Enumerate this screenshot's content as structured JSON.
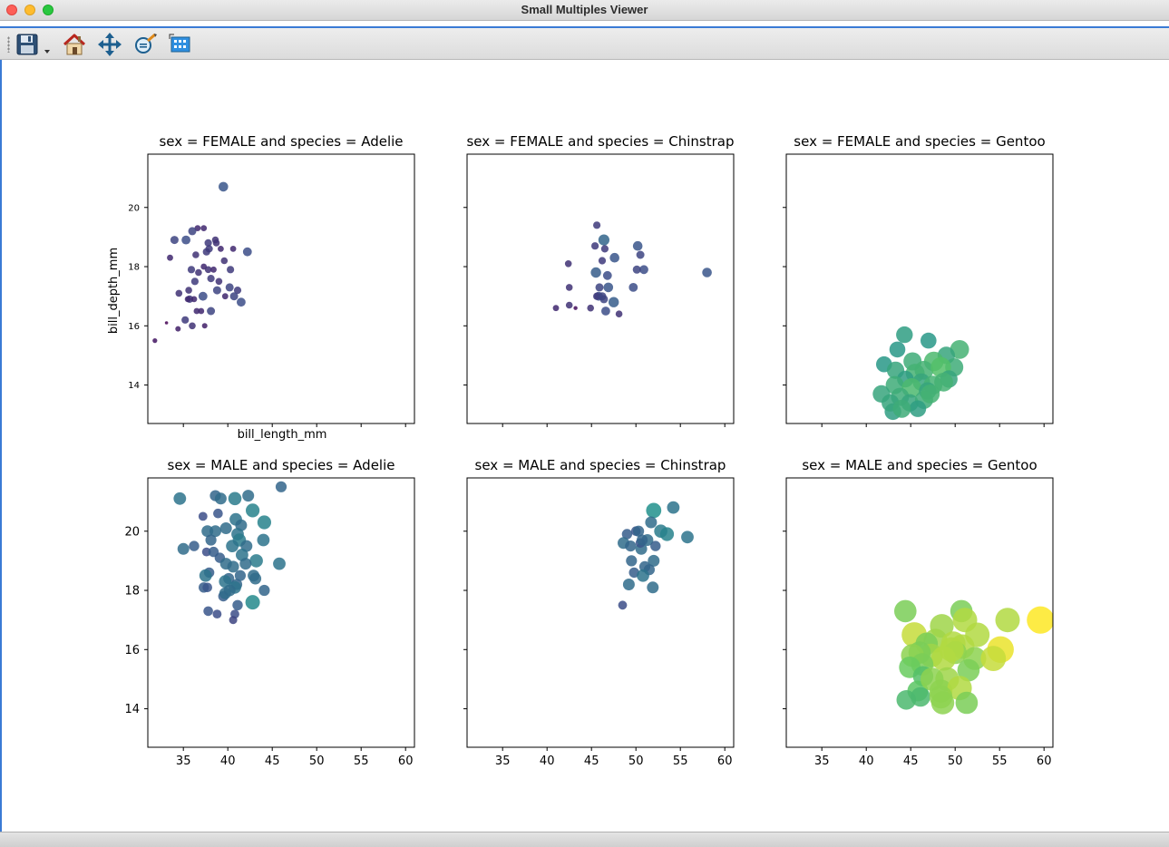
{
  "window": {
    "title": "Small Multiples Viewer",
    "controls": [
      "close",
      "minimize",
      "zoom"
    ]
  },
  "toolbar": {
    "tools": [
      {
        "icon": "save-icon",
        "label": "Save"
      },
      {
        "icon": "home-icon",
        "label": "Home"
      },
      {
        "icon": "pan-icon",
        "label": "Pan"
      },
      {
        "icon": "zoom-icon",
        "label": "Zoom"
      },
      {
        "icon": "subplots-icon",
        "label": "Configure subplots"
      }
    ]
  },
  "colors": {
    "accent": "#3a7bd5",
    "colormap": "viridis"
  },
  "chart_data": [
    {
      "type": "scatter",
      "title": "sex = FEMALE and species = Adelie",
      "xlabel": "bill_length_mm",
      "ylabel": "bill_depth_mm",
      "xlim": [
        31,
        61
      ],
      "ylim": [
        12.7,
        21.8
      ],
      "xticks": [
        35,
        40,
        45,
        50,
        55,
        60
      ],
      "yticks": [
        14,
        16,
        18,
        20
      ],
      "show_x_ticklabels": false,
      "show_y_ticklabels": true,
      "small_yticks": true,
      "grid": false,
      "points": [
        [
          39.5,
          20.7,
          3.5
        ],
        [
          36.6,
          19.3,
          3.0
        ],
        [
          36.0,
          19.2,
          3.3
        ],
        [
          37.3,
          19.3,
          3.0
        ],
        [
          34.0,
          18.9,
          3.3
        ],
        [
          37.8,
          18.8,
          3.2
        ],
        [
          35.3,
          18.9,
          3.4
        ],
        [
          38.6,
          18.9,
          3.1
        ],
        [
          40.6,
          18.6,
          3.0
        ],
        [
          38.7,
          18.8,
          3.1
        ],
        [
          36.4,
          18.4,
          3.1
        ],
        [
          37.6,
          18.5,
          3.2
        ],
        [
          42.2,
          18.5,
          3.4
        ],
        [
          33.5,
          18.3,
          3.0
        ],
        [
          35.9,
          17.9,
          3.2
        ],
        [
          37.3,
          18.0,
          3.0
        ],
        [
          37.8,
          17.9,
          3.1
        ],
        [
          38.1,
          17.6,
          3.2
        ],
        [
          39.0,
          17.5,
          3.1
        ],
        [
          40.2,
          17.3,
          3.3
        ],
        [
          41.1,
          17.2,
          3.2
        ],
        [
          36.3,
          17.5,
          3.2
        ],
        [
          35.6,
          17.2,
          3.1
        ],
        [
          37.2,
          17.0,
          3.4
        ],
        [
          39.7,
          17.0,
          3.0
        ],
        [
          40.7,
          17.0,
          3.3
        ],
        [
          35.7,
          16.9,
          3.2
        ],
        [
          34.5,
          17.1,
          3.1
        ],
        [
          36.2,
          16.9,
          3.0
        ],
        [
          38.8,
          17.2,
          3.3
        ],
        [
          41.5,
          16.8,
          3.4
        ],
        [
          38.1,
          16.5,
          3.3
        ],
        [
          36.5,
          16.5,
          3.0
        ],
        [
          35.2,
          16.2,
          3.2
        ],
        [
          34.4,
          15.9,
          2.9
        ],
        [
          36.0,
          16.0,
          3.1
        ],
        [
          37.0,
          16.5,
          3.0
        ],
        [
          31.8,
          15.5,
          2.8
        ],
        [
          33.1,
          16.1,
          2.6
        ],
        [
          37.4,
          16.0,
          2.9
        ],
        [
          37.9,
          18.6,
          3.2
        ],
        [
          39.2,
          18.6,
          3.0
        ],
        [
          40.3,
          17.9,
          3.2
        ],
        [
          39.6,
          18.2,
          3.1
        ],
        [
          38.4,
          17.9,
          3.0
        ],
        [
          36.7,
          17.8,
          3.1
        ],
        [
          35.5,
          16.9,
          3.0
        ]
      ]
    },
    {
      "type": "scatter",
      "title": "sex = FEMALE and species = Chinstrap",
      "xlabel": "",
      "ylabel": "",
      "xlim": [
        31,
        61
      ],
      "ylim": [
        12.7,
        21.8
      ],
      "xticks": [
        35,
        40,
        45,
        50,
        55,
        60
      ],
      "yticks": [
        14,
        16,
        18,
        20
      ],
      "show_x_ticklabels": false,
      "show_y_ticklabels": false,
      "small_yticks": true,
      "grid": false,
      "points": [
        [
          45.6,
          19.4,
          3.2
        ],
        [
          46.4,
          18.9,
          3.7
        ],
        [
          45.4,
          18.7,
          3.2
        ],
        [
          50.2,
          18.7,
          3.5
        ],
        [
          46.5,
          18.6,
          3.2
        ],
        [
          50.5,
          18.4,
          3.3
        ],
        [
          47.6,
          18.3,
          3.5
        ],
        [
          46.2,
          18.2,
          3.2
        ],
        [
          42.4,
          18.1,
          3.1
        ],
        [
          58.0,
          17.8,
          3.5
        ],
        [
          50.9,
          17.9,
          3.4
        ],
        [
          45.5,
          17.8,
          3.6
        ],
        [
          46.8,
          17.7,
          3.4
        ],
        [
          50.1,
          17.9,
          3.3
        ],
        [
          45.9,
          17.3,
          3.3
        ],
        [
          49.7,
          17.3,
          3.4
        ],
        [
          46.9,
          17.3,
          3.5
        ],
        [
          42.5,
          17.3,
          3.1
        ],
        [
          45.8,
          17.0,
          3.4
        ],
        [
          45.6,
          17.0,
          3.2
        ],
        [
          46.4,
          16.9,
          3.3
        ],
        [
          47.5,
          16.8,
          3.6
        ],
        [
          46.6,
          16.5,
          3.4
        ],
        [
          44.9,
          16.6,
          3.1
        ],
        [
          42.5,
          16.7,
          3.1
        ],
        [
          43.2,
          16.6,
          2.7
        ],
        [
          41.0,
          16.6,
          3.0
        ],
        [
          48.1,
          16.4,
          3.1
        ],
        [
          46.2,
          17.0,
          3.3
        ]
      ]
    },
    {
      "type": "scatter",
      "title": "sex = FEMALE and species = Gentoo",
      "xlabel": "",
      "ylabel": "",
      "xlim": [
        31,
        61
      ],
      "ylim": [
        12.7,
        21.8
      ],
      "xticks": [
        35,
        40,
        45,
        50,
        55,
        60
      ],
      "yticks": [
        14,
        16,
        18,
        20
      ],
      "show_x_ticklabels": false,
      "show_y_ticklabels": false,
      "small_yticks": true,
      "grid": false,
      "points": [
        [
          44.3,
          15.7,
          4.5
        ],
        [
          47.0,
          15.5,
          4.4
        ],
        [
          50.5,
          15.2,
          4.8
        ],
        [
          43.5,
          15.2,
          4.4
        ],
        [
          49.0,
          15.0,
          4.6
        ],
        [
          45.2,
          14.8,
          4.7
        ],
        [
          47.6,
          14.8,
          4.9
        ],
        [
          49.9,
          14.6,
          4.7
        ],
        [
          42.0,
          14.7,
          4.4
        ],
        [
          43.3,
          14.5,
          4.6
        ],
        [
          46.5,
          14.5,
          4.8
        ],
        [
          48.4,
          14.6,
          5.0
        ],
        [
          45.5,
          14.4,
          4.8
        ],
        [
          44.4,
          14.2,
          4.5
        ],
        [
          46.2,
          14.1,
          4.6
        ],
        [
          49.3,
          14.2,
          4.6
        ],
        [
          43.2,
          14.0,
          4.7
        ],
        [
          47.5,
          14.0,
          4.8
        ],
        [
          45.1,
          13.9,
          4.9
        ],
        [
          46.9,
          13.8,
          4.6
        ],
        [
          41.7,
          13.7,
          4.6
        ],
        [
          43.8,
          13.6,
          4.7
        ],
        [
          44.9,
          13.4,
          4.6
        ],
        [
          46.5,
          13.5,
          4.7
        ],
        [
          48.7,
          14.1,
          4.8
        ],
        [
          43.0,
          13.1,
          4.5
        ],
        [
          45.8,
          13.2,
          4.5
        ],
        [
          42.7,
          13.4,
          4.6
        ],
        [
          44.0,
          13.2,
          4.7
        ],
        [
          47.2,
          13.7,
          4.8
        ]
      ]
    },
    {
      "type": "scatter",
      "title": "sex = MALE and species = Adelie",
      "xlabel": "",
      "ylabel": "",
      "xlim": [
        31,
        61
      ],
      "ylim": [
        12.7,
        21.8
      ],
      "xticks": [
        35,
        40,
        45,
        50,
        55,
        60
      ],
      "yticks": [
        14,
        16,
        18,
        20
      ],
      "show_x_ticklabels": true,
      "show_y_ticklabels": true,
      "small_yticks": false,
      "grid": false,
      "points": [
        [
          34.6,
          21.1,
          3.9
        ],
        [
          38.6,
          21.2,
          3.7
        ],
        [
          39.2,
          21.1,
          3.8
        ],
        [
          40.8,
          21.1,
          4.0
        ],
        [
          42.3,
          21.2,
          3.8
        ],
        [
          46.0,
          21.5,
          3.7
        ],
        [
          42.8,
          20.7,
          4.1
        ],
        [
          38.9,
          20.6,
          3.5
        ],
        [
          37.2,
          20.5,
          3.4
        ],
        [
          40.9,
          20.4,
          3.9
        ],
        [
          41.5,
          20.2,
          3.8
        ],
        [
          44.1,
          20.3,
          4.1
        ],
        [
          39.8,
          20.1,
          3.8
        ],
        [
          37.7,
          20.0,
          3.8
        ],
        [
          38.6,
          20.0,
          3.8
        ],
        [
          41.1,
          19.9,
          3.9
        ],
        [
          41.3,
          19.7,
          4.0
        ],
        [
          40.5,
          19.5,
          3.9
        ],
        [
          44.0,
          19.7,
          3.9
        ],
        [
          38.1,
          19.7,
          3.7
        ],
        [
          35.0,
          19.4,
          3.8
        ],
        [
          36.2,
          19.5,
          3.6
        ],
        [
          37.6,
          19.3,
          3.4
        ],
        [
          42.1,
          19.5,
          3.8
        ],
        [
          41.6,
          19.2,
          3.9
        ],
        [
          38.4,
          19.3,
          3.6
        ],
        [
          43.2,
          19.0,
          4.0
        ],
        [
          42.0,
          18.9,
          3.8
        ],
        [
          39.1,
          19.1,
          3.6
        ],
        [
          39.8,
          18.9,
          3.8
        ],
        [
          45.8,
          18.9,
          3.9
        ],
        [
          40.6,
          18.8,
          3.8
        ],
        [
          37.9,
          18.6,
          3.6
        ],
        [
          41.4,
          18.5,
          3.7
        ],
        [
          42.9,
          18.5,
          3.8
        ],
        [
          37.5,
          18.5,
          3.9
        ],
        [
          40.1,
          18.4,
          3.7
        ],
        [
          39.7,
          18.3,
          3.9
        ],
        [
          43.1,
          18.4,
          3.8
        ],
        [
          41.0,
          18.2,
          3.7
        ],
        [
          37.3,
          18.1,
          3.6
        ],
        [
          37.7,
          18.1,
          3.5
        ],
        [
          40.8,
          18.1,
          3.9
        ],
        [
          40.2,
          18.0,
          3.8
        ],
        [
          44.1,
          18.0,
          3.7
        ],
        [
          39.5,
          17.8,
          3.6
        ],
        [
          39.7,
          17.9,
          3.8
        ],
        [
          41.1,
          17.5,
          3.6
        ],
        [
          42.8,
          17.6,
          4.2
        ],
        [
          37.8,
          17.3,
          3.5
        ],
        [
          38.8,
          17.2,
          3.4
        ],
        [
          40.8,
          17.2,
          3.4
        ],
        [
          40.6,
          17.0,
          3.3
        ]
      ]
    },
    {
      "type": "scatter",
      "title": "sex = MALE and species = Chinstrap",
      "xlabel": "",
      "ylabel": "",
      "xlim": [
        31,
        61
      ],
      "ylim": [
        12.7,
        21.8
      ],
      "xticks": [
        35,
        40,
        45,
        50,
        55,
        60
      ],
      "yticks": [
        14,
        16,
        18,
        20
      ],
      "show_x_ticklabels": true,
      "show_y_ticklabels": false,
      "small_yticks": false,
      "grid": false,
      "points": [
        [
          54.2,
          20.8,
          3.9
        ],
        [
          52.0,
          20.7,
          4.3
        ],
        [
          51.7,
          20.3,
          3.8
        ],
        [
          52.8,
          20.0,
          4.0
        ],
        [
          50.0,
          20.0,
          3.5
        ],
        [
          49.0,
          19.9,
          3.6
        ],
        [
          53.5,
          19.9,
          4.1
        ],
        [
          50.3,
          20.0,
          3.7
        ],
        [
          55.8,
          19.8,
          3.9
        ],
        [
          51.3,
          19.7,
          3.8
        ],
        [
          48.6,
          19.6,
          3.8
        ],
        [
          49.4,
          19.5,
          3.7
        ],
        [
          50.6,
          19.4,
          3.8
        ],
        [
          52.0,
          19.0,
          3.8
        ],
        [
          49.5,
          19.0,
          3.7
        ],
        [
          51.5,
          18.7,
          3.7
        ],
        [
          50.5,
          19.6,
          3.5
        ],
        [
          52.2,
          19.5,
          3.6
        ],
        [
          49.8,
          18.6,
          3.6
        ],
        [
          51.0,
          18.8,
          3.7
        ],
        [
          49.2,
          18.2,
          3.8
        ],
        [
          51.9,
          18.1,
          3.8
        ],
        [
          50.8,
          18.5,
          3.9
        ],
        [
          50.7,
          19.7,
          3.7
        ],
        [
          48.5,
          17.5,
          3.4
        ]
      ]
    },
    {
      "type": "scatter",
      "title": "sex = MALE and species = Gentoo",
      "xlabel": "",
      "ylabel": "",
      "xlim": [
        31,
        61
      ],
      "ylim": [
        12.7,
        21.8
      ],
      "xticks": [
        35,
        40,
        45,
        50,
        55,
        60
      ],
      "yticks": [
        14,
        16,
        18,
        20
      ],
      "show_x_ticklabels": true,
      "show_y_ticklabels": false,
      "small_yticks": false,
      "grid": false,
      "points": [
        [
          44.4,
          17.3,
          5.3
        ],
        [
          50.7,
          17.3,
          5.3
        ],
        [
          51.1,
          17.0,
          5.6
        ],
        [
          59.6,
          17.0,
          6.0
        ],
        [
          55.9,
          17.0,
          5.6
        ],
        [
          48.5,
          16.8,
          5.5
        ],
        [
          45.4,
          16.5,
          5.7
        ],
        [
          52.5,
          16.5,
          5.6
        ],
        [
          47.8,
          16.3,
          5.5
        ],
        [
          49.8,
          16.2,
          5.6
        ],
        [
          46.8,
          16.2,
          5.3
        ],
        [
          50.8,
          16.1,
          5.6
        ],
        [
          55.1,
          16.0,
          5.9
        ],
        [
          47.3,
          15.8,
          5.5
        ],
        [
          46.0,
          15.9,
          5.3
        ],
        [
          50.0,
          15.9,
          5.4
        ],
        [
          52.2,
          15.7,
          5.4
        ],
        [
          48.7,
          15.7,
          5.6
        ],
        [
          54.3,
          15.7,
          5.7
        ],
        [
          45.2,
          15.8,
          5.4
        ],
        [
          49.6,
          16.0,
          5.6
        ],
        [
          51.5,
          15.3,
          5.3
        ],
        [
          46.3,
          15.5,
          5.3
        ],
        [
          49.1,
          15.0,
          5.5
        ],
        [
          44.9,
          15.4,
          5.2
        ],
        [
          48.4,
          14.6,
          5.4
        ],
        [
          50.5,
          14.7,
          5.6
        ],
        [
          46.4,
          15.1,
          5.0
        ],
        [
          45.8,
          14.6,
          5.1
        ],
        [
          47.4,
          15.0,
          5.4
        ],
        [
          44.5,
          14.3,
          4.9
        ],
        [
          46.1,
          14.4,
          4.9
        ],
        [
          51.3,
          14.2,
          5.3
        ],
        [
          48.4,
          14.4,
          5.4
        ],
        [
          48.6,
          14.2,
          5.4
        ]
      ]
    }
  ]
}
